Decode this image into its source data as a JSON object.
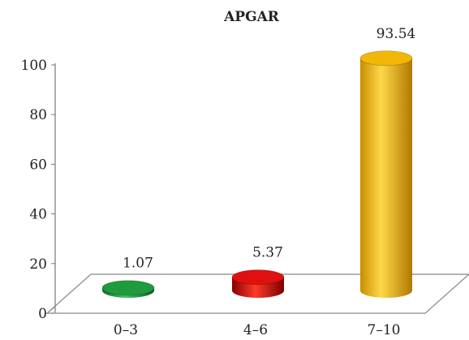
{
  "chart_data": {
    "type": "bar",
    "title": "APGAR",
    "categories": [
      "0–3",
      "4–6",
      "7–10"
    ],
    "values": [
      1.07,
      5.37,
      93.54
    ],
    "data_labels": [
      "1.07",
      "5.37",
      "93.54"
    ],
    "series_colors": [
      "#1f9a3e",
      "#e01010",
      "#f2b705"
    ],
    "ylim": [
      0,
      100
    ],
    "yticks": [
      0,
      20,
      40,
      60,
      80,
      100
    ],
    "ytick_labels": [
      "0",
      "20",
      "40",
      "60",
      "80",
      "100"
    ],
    "xlabel": "",
    "ylabel": "",
    "grid": false,
    "legend": "none",
    "style": "3d-cylinder"
  }
}
